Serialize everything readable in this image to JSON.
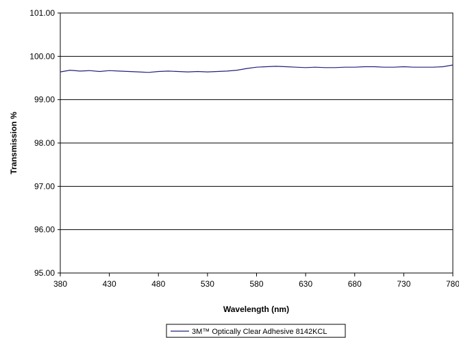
{
  "chart_data": {
    "type": "line",
    "title": "",
    "xlabel": "Wavelength (nm)",
    "ylabel": "Transmission %",
    "xlim": [
      380,
      780
    ],
    "ylim": [
      95,
      101
    ],
    "x_ticks": [
      380,
      430,
      480,
      530,
      580,
      630,
      680,
      730,
      780
    ],
    "x_tick_labels": [
      "380",
      "430",
      "480",
      "530",
      "580",
      "630",
      "680",
      "730",
      "780"
    ],
    "y_ticks": [
      95,
      96,
      97,
      98,
      99,
      100,
      101
    ],
    "y_tick_labels": [
      "95.00",
      "96.00",
      "97.00",
      "98.00",
      "99.00",
      "100.00",
      "101.00"
    ],
    "grid": "horizontal",
    "legend_position": "bottom-center",
    "series": [
      {
        "name": "3M™ Optically Clear Adhesive 8142KCL",
        "color": "#1f1f7a",
        "x": [
          380,
          390,
          400,
          410,
          420,
          430,
          440,
          450,
          460,
          470,
          480,
          490,
          500,
          510,
          520,
          530,
          540,
          550,
          560,
          570,
          580,
          590,
          600,
          610,
          620,
          630,
          640,
          650,
          660,
          670,
          680,
          690,
          700,
          710,
          720,
          730,
          740,
          750,
          760,
          770,
          780
        ],
        "y": [
          99.64,
          99.68,
          99.66,
          99.67,
          99.65,
          99.67,
          99.66,
          99.65,
          99.64,
          99.63,
          99.65,
          99.66,
          99.65,
          99.64,
          99.65,
          99.64,
          99.65,
          99.66,
          99.68,
          99.72,
          99.75,
          99.76,
          99.77,
          99.76,
          99.75,
          99.74,
          99.75,
          99.74,
          99.74,
          99.75,
          99.75,
          99.76,
          99.76,
          99.75,
          99.75,
          99.76,
          99.75,
          99.75,
          99.75,
          99.76,
          99.8
        ]
      }
    ]
  }
}
